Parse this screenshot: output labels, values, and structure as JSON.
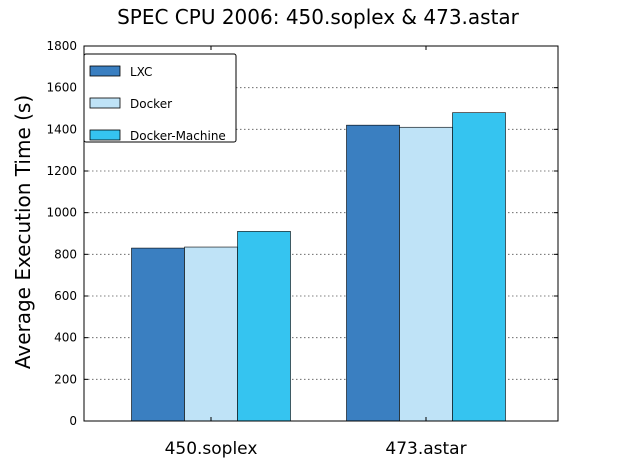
{
  "chart_data": {
    "type": "bar",
    "title": "SPEC CPU 2006: 450.soplex & 473.astar",
    "xlabel": "",
    "ylabel": "Average Execution Time (s)",
    "categories": [
      "450.soplex",
      "473.astar"
    ],
    "series": [
      {
        "name": "LXC",
        "values": [
          830,
          1420
        ],
        "color": "#3a7fc1"
      },
      {
        "name": "Docker",
        "values": [
          835,
          1410
        ],
        "color": "#bfe3f7"
      },
      {
        "name": "Docker-Machine",
        "values": [
          910,
          1480
        ],
        "color": "#35c4f0"
      }
    ],
    "ylim": [
      0,
      1800
    ],
    "yticks": [
      "0",
      "200",
      "400",
      "600",
      "800",
      "1000",
      "1200",
      "1400",
      "1600",
      "1800"
    ],
    "grid": true,
    "legend_position": "top-left"
  }
}
